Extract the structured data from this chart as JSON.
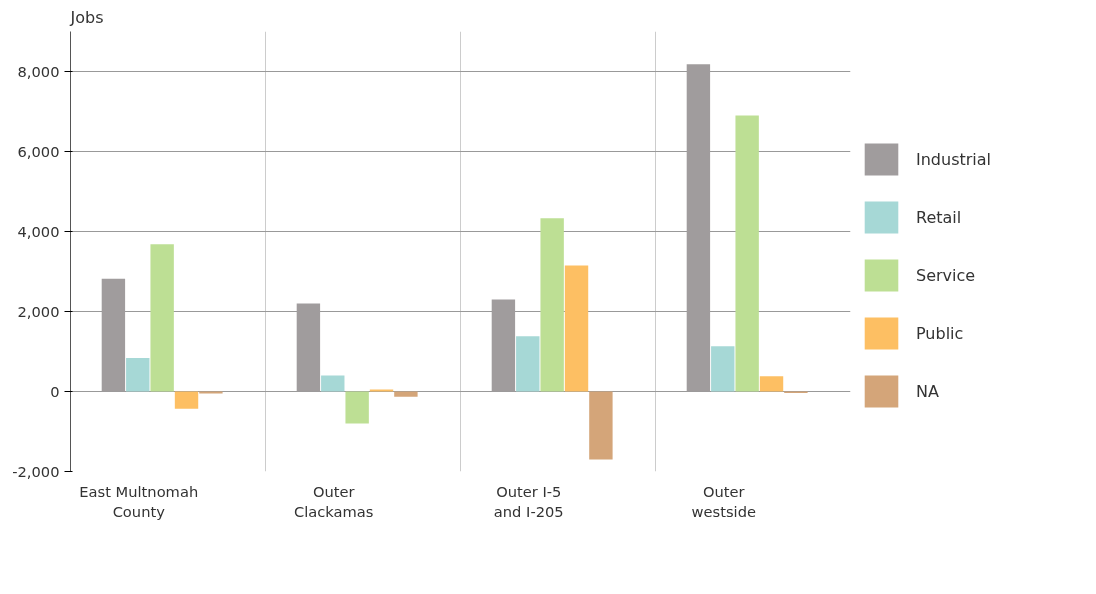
{
  "chart_data": {
    "type": "bar",
    "ylabel": "Jobs",
    "categories": [
      "East Multnomah County",
      "Outer Clackamas",
      "Outer I-5 and I-205",
      "Outer westside"
    ],
    "series": [
      {
        "name": "Industrial",
        "color": "#a09c9d",
        "values": [
          2820,
          2200,
          2300,
          8180
        ]
      },
      {
        "name": "Retail",
        "color": "#a6d8d6",
        "values": [
          840,
          400,
          1380,
          1130
        ]
      },
      {
        "name": "Service",
        "color": "#bddf94",
        "values": [
          3680,
          -800,
          4330,
          6900
        ]
      },
      {
        "name": "Public",
        "color": "#fdbf63",
        "values": [
          -430,
          50,
          3150,
          380
        ]
      },
      {
        "name": "NA",
        "color": "#d4a579",
        "values": [
          -50,
          -130,
          -1700,
          -40
        ]
      }
    ],
    "ylim": [
      -2000,
      9000
    ],
    "yticks": [
      {
        "value": -2000,
        "label": "-2,000"
      },
      0,
      {
        "value": 2000,
        "label": "2,000"
      },
      {
        "value": 4000,
        "label": "4,000"
      },
      {
        "value": 6000,
        "label": "6,000"
      },
      {
        "value": 8000,
        "label": "8,000"
      }
    ],
    "grid": true,
    "legend": "right"
  }
}
